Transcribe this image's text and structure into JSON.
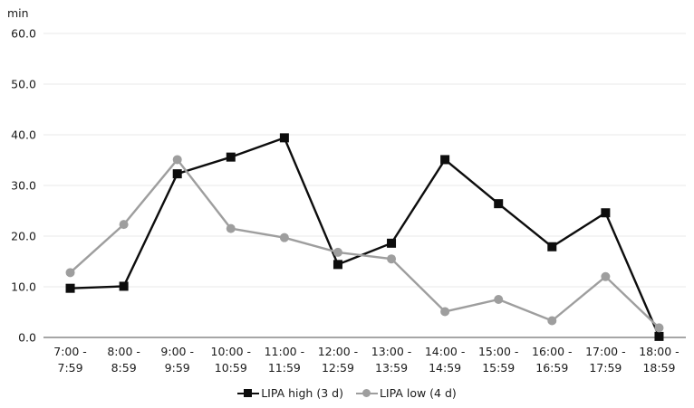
{
  "chart_data": {
    "type": "line",
    "title": "",
    "ylabel": "min",
    "xlabel": "",
    "ylim": [
      0,
      60
    ],
    "ytick_labels": [
      "0.0",
      "10.0",
      "20.0",
      "30.0",
      "40.0",
      "50.0",
      "60.0"
    ],
    "grid": true,
    "legend_position": "bottom",
    "categories": [
      "7:00 - 7:59",
      "8:00 - 8:59",
      "9:00 - 9:59",
      "10:00 - 10:59",
      "11:00 - 11:59",
      "12:00 - 12:59",
      "13:00 - 13:59",
      "14:00 - 14:59",
      "15:00 - 15:59",
      "16:00 - 16:59",
      "17:00 - 17:59",
      "18:00 - 18:59"
    ],
    "series": [
      {
        "name": "LIPA high (3 d)",
        "marker": "square",
        "color": "#0d0d0d",
        "values": [
          9.7,
          10.1,
          32.3,
          35.6,
          39.4,
          14.4,
          18.6,
          35.1,
          26.4,
          17.9,
          24.6,
          0.2
        ]
      },
      {
        "name": "LIPA low (4 d)",
        "marker": "circle",
        "color": "#9e9e9e",
        "values": [
          12.8,
          22.3,
          35.1,
          21.5,
          19.7,
          16.8,
          15.5,
          5.1,
          7.5,
          3.3,
          12.0,
          1.9
        ]
      }
    ]
  },
  "colors": {
    "grid": "#e9e9e9",
    "axis": "#a6a6a6",
    "text": "#1a1a1a",
    "background": "#ffffff"
  }
}
